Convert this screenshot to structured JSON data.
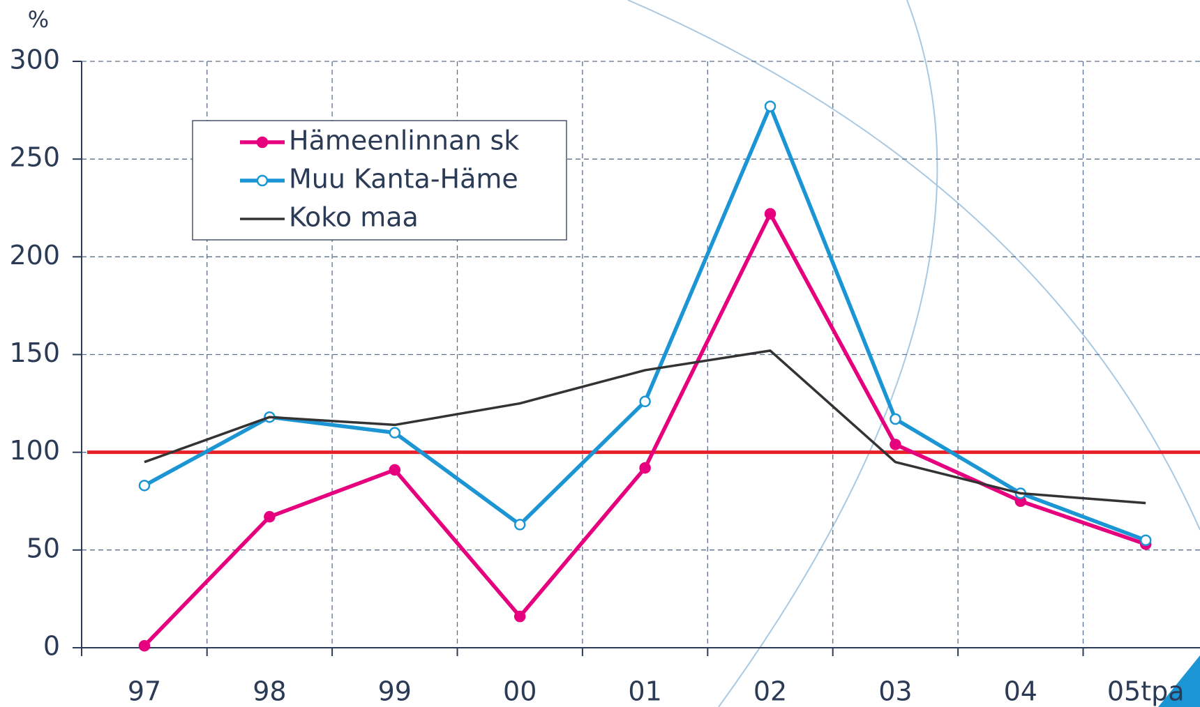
{
  "chart_data": {
    "type": "line",
    "y_label": "%",
    "categories": [
      "97",
      "98",
      "99",
      "00",
      "01",
      "02",
      "03",
      "04",
      "05tpa"
    ],
    "series": [
      {
        "name": "Hämeenlinnan sk",
        "color": "#e6007e",
        "marker": "filled",
        "values": [
          1,
          67,
          91,
          16,
          92,
          222,
          104,
          75,
          53
        ]
      },
      {
        "name": "Muu Kanta-Häme",
        "color": "#1b95d3",
        "marker": "open",
        "values": [
          83,
          118,
          110,
          63,
          126,
          277,
          117,
          79,
          55
        ]
      },
      {
        "name": "Koko maa",
        "color": "#333333",
        "marker": "none",
        "values": [
          95,
          118,
          114,
          125,
          142,
          152,
          95,
          79,
          74
        ]
      }
    ],
    "reference_line": {
      "value": 100,
      "color": "#e8202a"
    },
    "ylim": [
      0,
      300
    ],
    "yticks": [
      0,
      50,
      100,
      150,
      200,
      250,
      300
    ],
    "grid": true,
    "legend": "upper left"
  }
}
